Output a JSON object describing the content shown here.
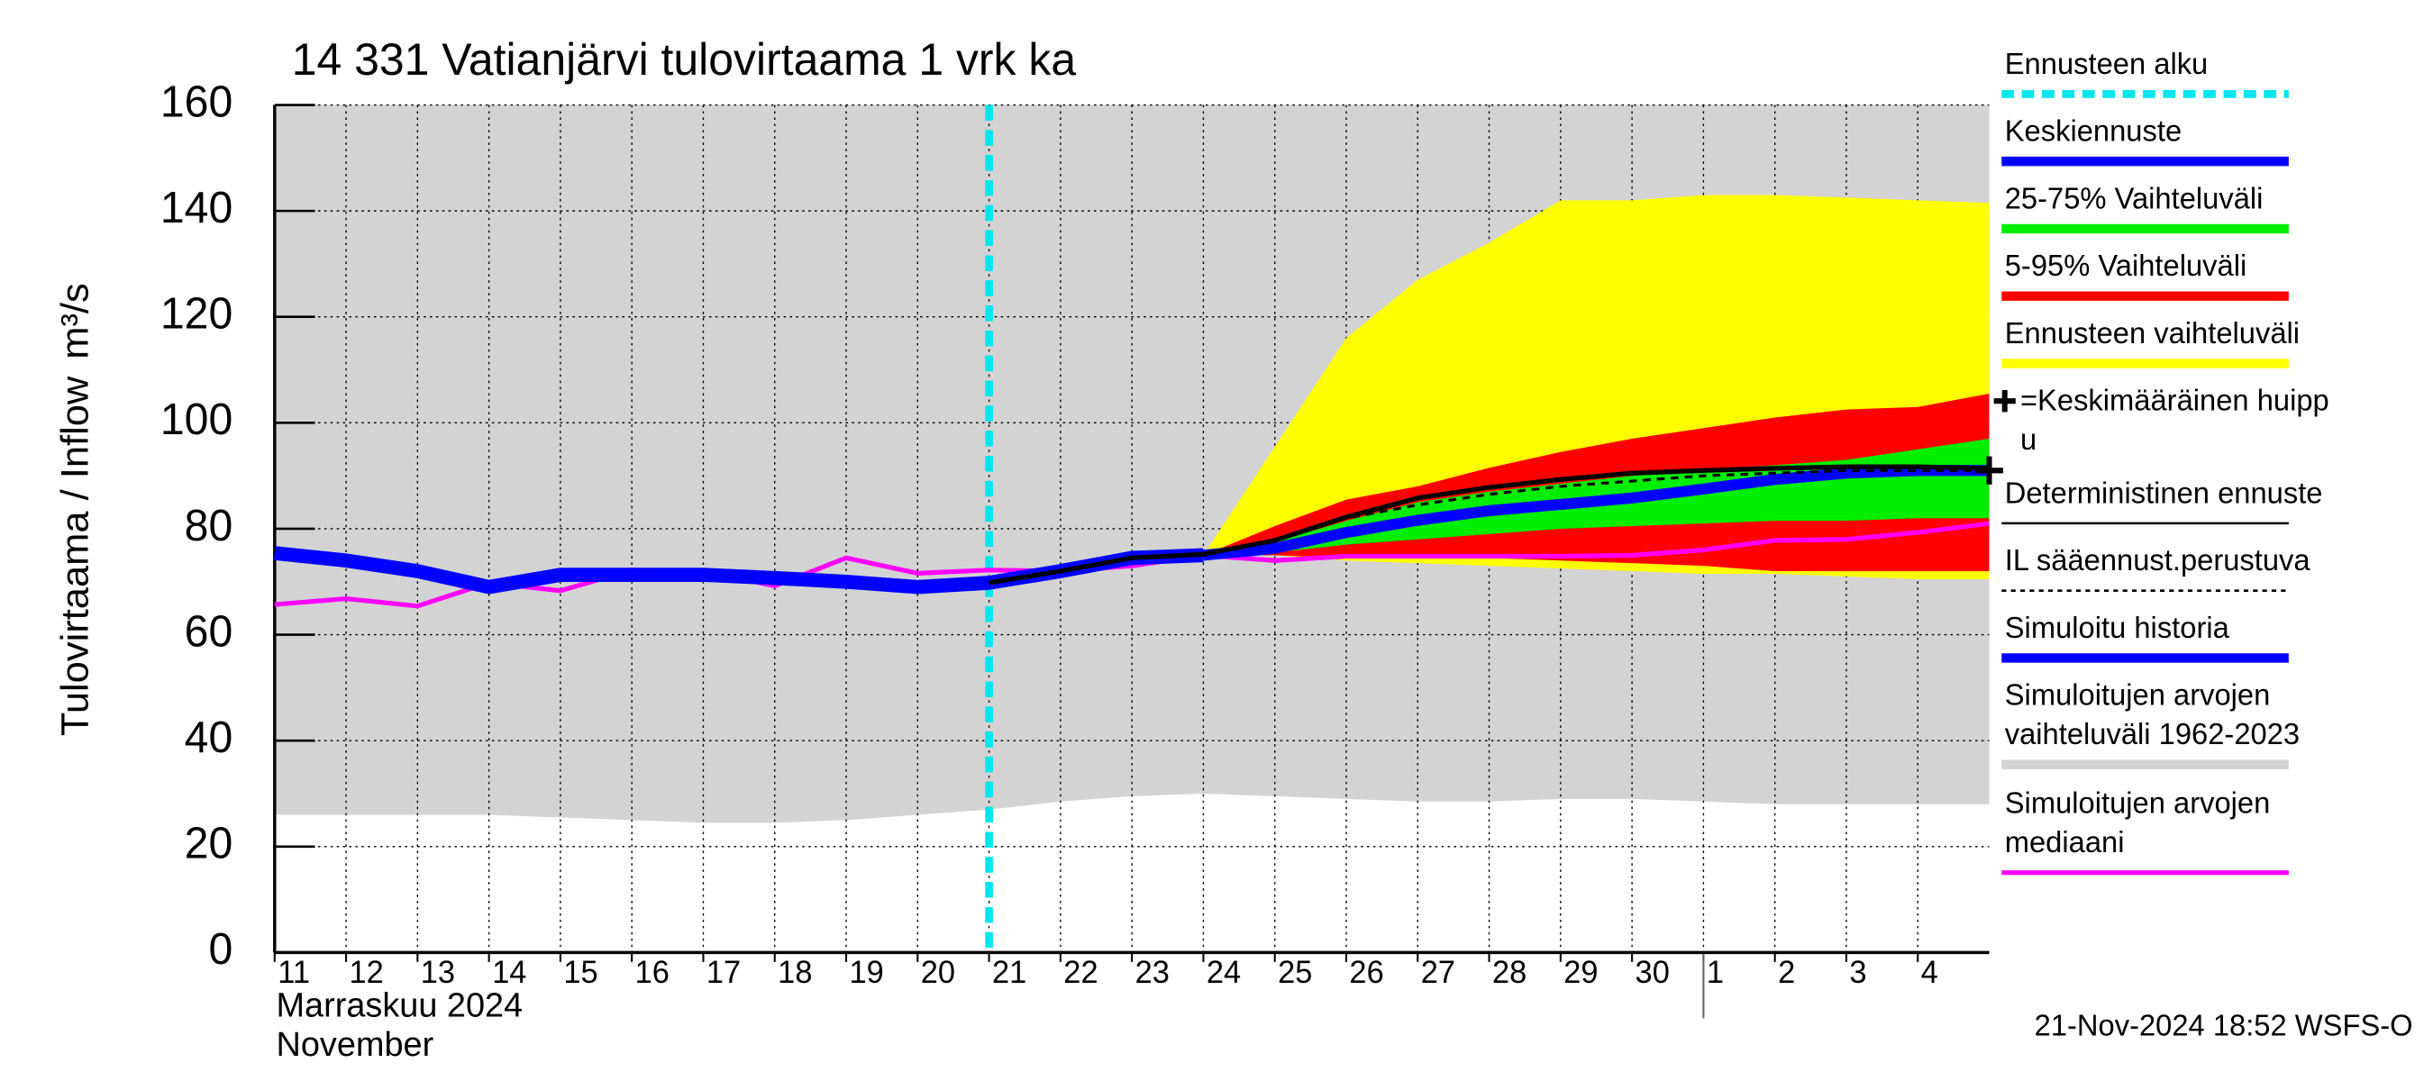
{
  "chart_data": {
    "type": "line",
    "title": "14 331 Vatianjärvi tulovirtaama 1 vrk ka",
    "y_label": "Tulovirtaama / Inflow",
    "y_unit": "m³/s",
    "month_labels": [
      "Marraskuu 2024",
      "November"
    ],
    "footer": "21-Nov-2024 18:52 WSFS-O",
    "grid": true,
    "x": [
      0,
      1,
      2,
      3,
      4,
      5,
      6,
      7,
      8,
      9,
      10,
      11,
      12,
      13,
      14,
      15,
      16,
      17,
      18,
      19,
      20,
      21,
      22,
      23,
      24
    ],
    "xlim": [
      0,
      24
    ],
    "xticks": [
      {
        "value": 0,
        "label": "11"
      },
      {
        "value": 1,
        "label": "12"
      },
      {
        "value": 2,
        "label": "13"
      },
      {
        "value": 3,
        "label": "14"
      },
      {
        "value": 4,
        "label": "15"
      },
      {
        "value": 5,
        "label": "16"
      },
      {
        "value": 6,
        "label": "17"
      },
      {
        "value": 7,
        "label": "18"
      },
      {
        "value": 8,
        "label": "19"
      },
      {
        "value": 9,
        "label": "20"
      },
      {
        "value": 10,
        "label": "21"
      },
      {
        "value": 11,
        "label": "22"
      },
      {
        "value": 12,
        "label": "23"
      },
      {
        "value": 13,
        "label": "24"
      },
      {
        "value": 14,
        "label": "25"
      },
      {
        "value": 15,
        "label": "26"
      },
      {
        "value": 16,
        "label": "27"
      },
      {
        "value": 17,
        "label": "28"
      },
      {
        "value": 18,
        "label": "29"
      },
      {
        "value": 19,
        "label": "30"
      },
      {
        "value": 20,
        "label": "1"
      },
      {
        "value": 21,
        "label": "2"
      },
      {
        "value": 22,
        "label": "3"
      },
      {
        "value": 23,
        "label": "4"
      }
    ],
    "ylim": [
      0,
      160
    ],
    "yticks": [
      0,
      20,
      40,
      60,
      80,
      100,
      120,
      140,
      160
    ],
    "forecast_start": 10,
    "bands": [
      {
        "color": "#d3d3d3",
        "upper": [
          160,
          160,
          160,
          160,
          160,
          160,
          160,
          160,
          160,
          160,
          160,
          160,
          160,
          160,
          160,
          160,
          160,
          160,
          160,
          160,
          160,
          160,
          160,
          160,
          160
        ],
        "lower": [
          26,
          26,
          26,
          26,
          25.5,
          25,
          24.5,
          24.5,
          25,
          26,
          27,
          28.5,
          29.5,
          30,
          29.5,
          29,
          28.5,
          28.5,
          29,
          29,
          28.5,
          28,
          28,
          28,
          28
        ]
      },
      {
        "color": "#ffff00",
        "upper": [
          null,
          null,
          null,
          null,
          null,
          null,
          null,
          null,
          null,
          null,
          null,
          null,
          null,
          75,
          95.5,
          116,
          127,
          134,
          142,
          142,
          143,
          143,
          142.5,
          142,
          141.5
        ],
        "lower": [
          null,
          null,
          null,
          null,
          null,
          null,
          null,
          null,
          null,
          null,
          null,
          null,
          null,
          75,
          75,
          74,
          73.5,
          73,
          72.5,
          72,
          71.5,
          71.5,
          71,
          70.5,
          70.5
        ]
      },
      {
        "color": "#ff0000",
        "upper": [
          null,
          null,
          null,
          null,
          null,
          null,
          null,
          null,
          null,
          null,
          null,
          null,
          null,
          75,
          80.5,
          85.5,
          88,
          91.5,
          94.5,
          97,
          99,
          101,
          102.5,
          103,
          105.5
        ],
        "lower": [
          null,
          null,
          null,
          null,
          null,
          null,
          null,
          null,
          null,
          null,
          null,
          null,
          null,
          75,
          75,
          74.5,
          74.5,
          74.5,
          74,
          73.5,
          73,
          72,
          72,
          72,
          72
        ]
      },
      {
        "color": "#00ee00",
        "upper": [
          null,
          null,
          null,
          null,
          null,
          null,
          null,
          null,
          null,
          null,
          null,
          null,
          null,
          75,
          77.5,
          81.5,
          85,
          87,
          88.5,
          90,
          91,
          92,
          93,
          95,
          97
        ],
        "lower": [
          null,
          null,
          null,
          null,
          null,
          null,
          null,
          null,
          null,
          null,
          null,
          null,
          null,
          75,
          75.5,
          77,
          78,
          79,
          80,
          80.5,
          81,
          81.5,
          81.5,
          82,
          82
        ]
      }
    ],
    "series": [
      {
        "color": "#ff00ff",
        "width": 3,
        "dash": false,
        "values": [
          65.7,
          66.8,
          65.4,
          69.8,
          68.3,
          72.2,
          72,
          69.2,
          74.5,
          71.6,
          72.2,
          72,
          73,
          75,
          74,
          74.8,
          74.8,
          74.8,
          74.8,
          75,
          76,
          77.8,
          78,
          79.3,
          81
        ]
      },
      {
        "color": "#0000ff",
        "width": 9,
        "dash": false,
        "values": [
          75.4,
          74,
          72,
          69,
          71.3,
          71.3,
          71.3,
          70.7,
          70,
          69,
          69.8,
          72,
          74.5,
          75,
          null,
          null,
          null,
          null,
          null,
          null,
          null,
          null,
          null,
          null,
          null
        ]
      },
      {
        "color": "#0000ff",
        "width": 7,
        "dash": false,
        "values": [
          null,
          null,
          null,
          null,
          null,
          null,
          null,
          null,
          null,
          null,
          null,
          null,
          null,
          75,
          76.3,
          79.3,
          81.6,
          83.4,
          84.6,
          85.8,
          87.5,
          89.3,
          90.5,
          91,
          91
        ]
      },
      {
        "color": "#000000",
        "width": 1.8,
        "dash": true,
        "values": [
          null,
          null,
          null,
          null,
          null,
          null,
          null,
          null,
          null,
          null,
          null,
          null,
          null,
          75,
          78,
          82,
          84.5,
          86.5,
          88,
          89,
          90,
          90.5,
          91,
          91,
          91
        ]
      },
      {
        "color": "#000000",
        "width": 3,
        "dash": false,
        "values": [
          null,
          null,
          null,
          null,
          null,
          null,
          null,
          null,
          null,
          null,
          69.8,
          72,
          74.5,
          75.2,
          77.8,
          82.2,
          85.8,
          87.8,
          89.3,
          90.5,
          91,
          91.4,
          91.7,
          91.7,
          91.4
        ]
      }
    ],
    "peak": {
      "x": 24,
      "value": 91
    },
    "legend": [
      {
        "label": [
          "Ennusteen alku"
        ],
        "color": "#00e5ee",
        "style": "dashed"
      },
      {
        "label": [
          "Keskiennuste"
        ],
        "color": "#0000ff",
        "style": "thick"
      },
      {
        "label": [
          "25-75% Vaihteluväli"
        ],
        "color": "#00ee00",
        "style": "thick"
      },
      {
        "label": [
          "5-95% Vaihteluväli"
        ],
        "color": "#ff0000",
        "style": "thick"
      },
      {
        "label": [
          "Ennusteen vaihteluväli"
        ],
        "color": "#ffff00",
        "style": "thick"
      },
      {
        "label": [
          "=Keskimääräinen huipp",
          "u"
        ],
        "color": "#000000",
        "style": "plus"
      },
      {
        "label": [
          "Deterministinen ennuste"
        ],
        "color": "#000000",
        "style": "thin"
      },
      {
        "label": [
          "IL sääennust.perustuva"
        ],
        "color": "#000000",
        "style": "dotted"
      },
      {
        "label": [
          "Simuloitu historia"
        ],
        "color": "#0000ff",
        "style": "thick"
      },
      {
        "label": [
          "Simuloitujen arvojen",
          "vaihteluväli 1962-2023"
        ],
        "color": "#d3d3d3",
        "style": "thick"
      },
      {
        "label": [
          "Simuloitujen arvojen",
          "mediaani"
        ],
        "color": "#ff00ff",
        "style": "medium"
      }
    ]
  }
}
